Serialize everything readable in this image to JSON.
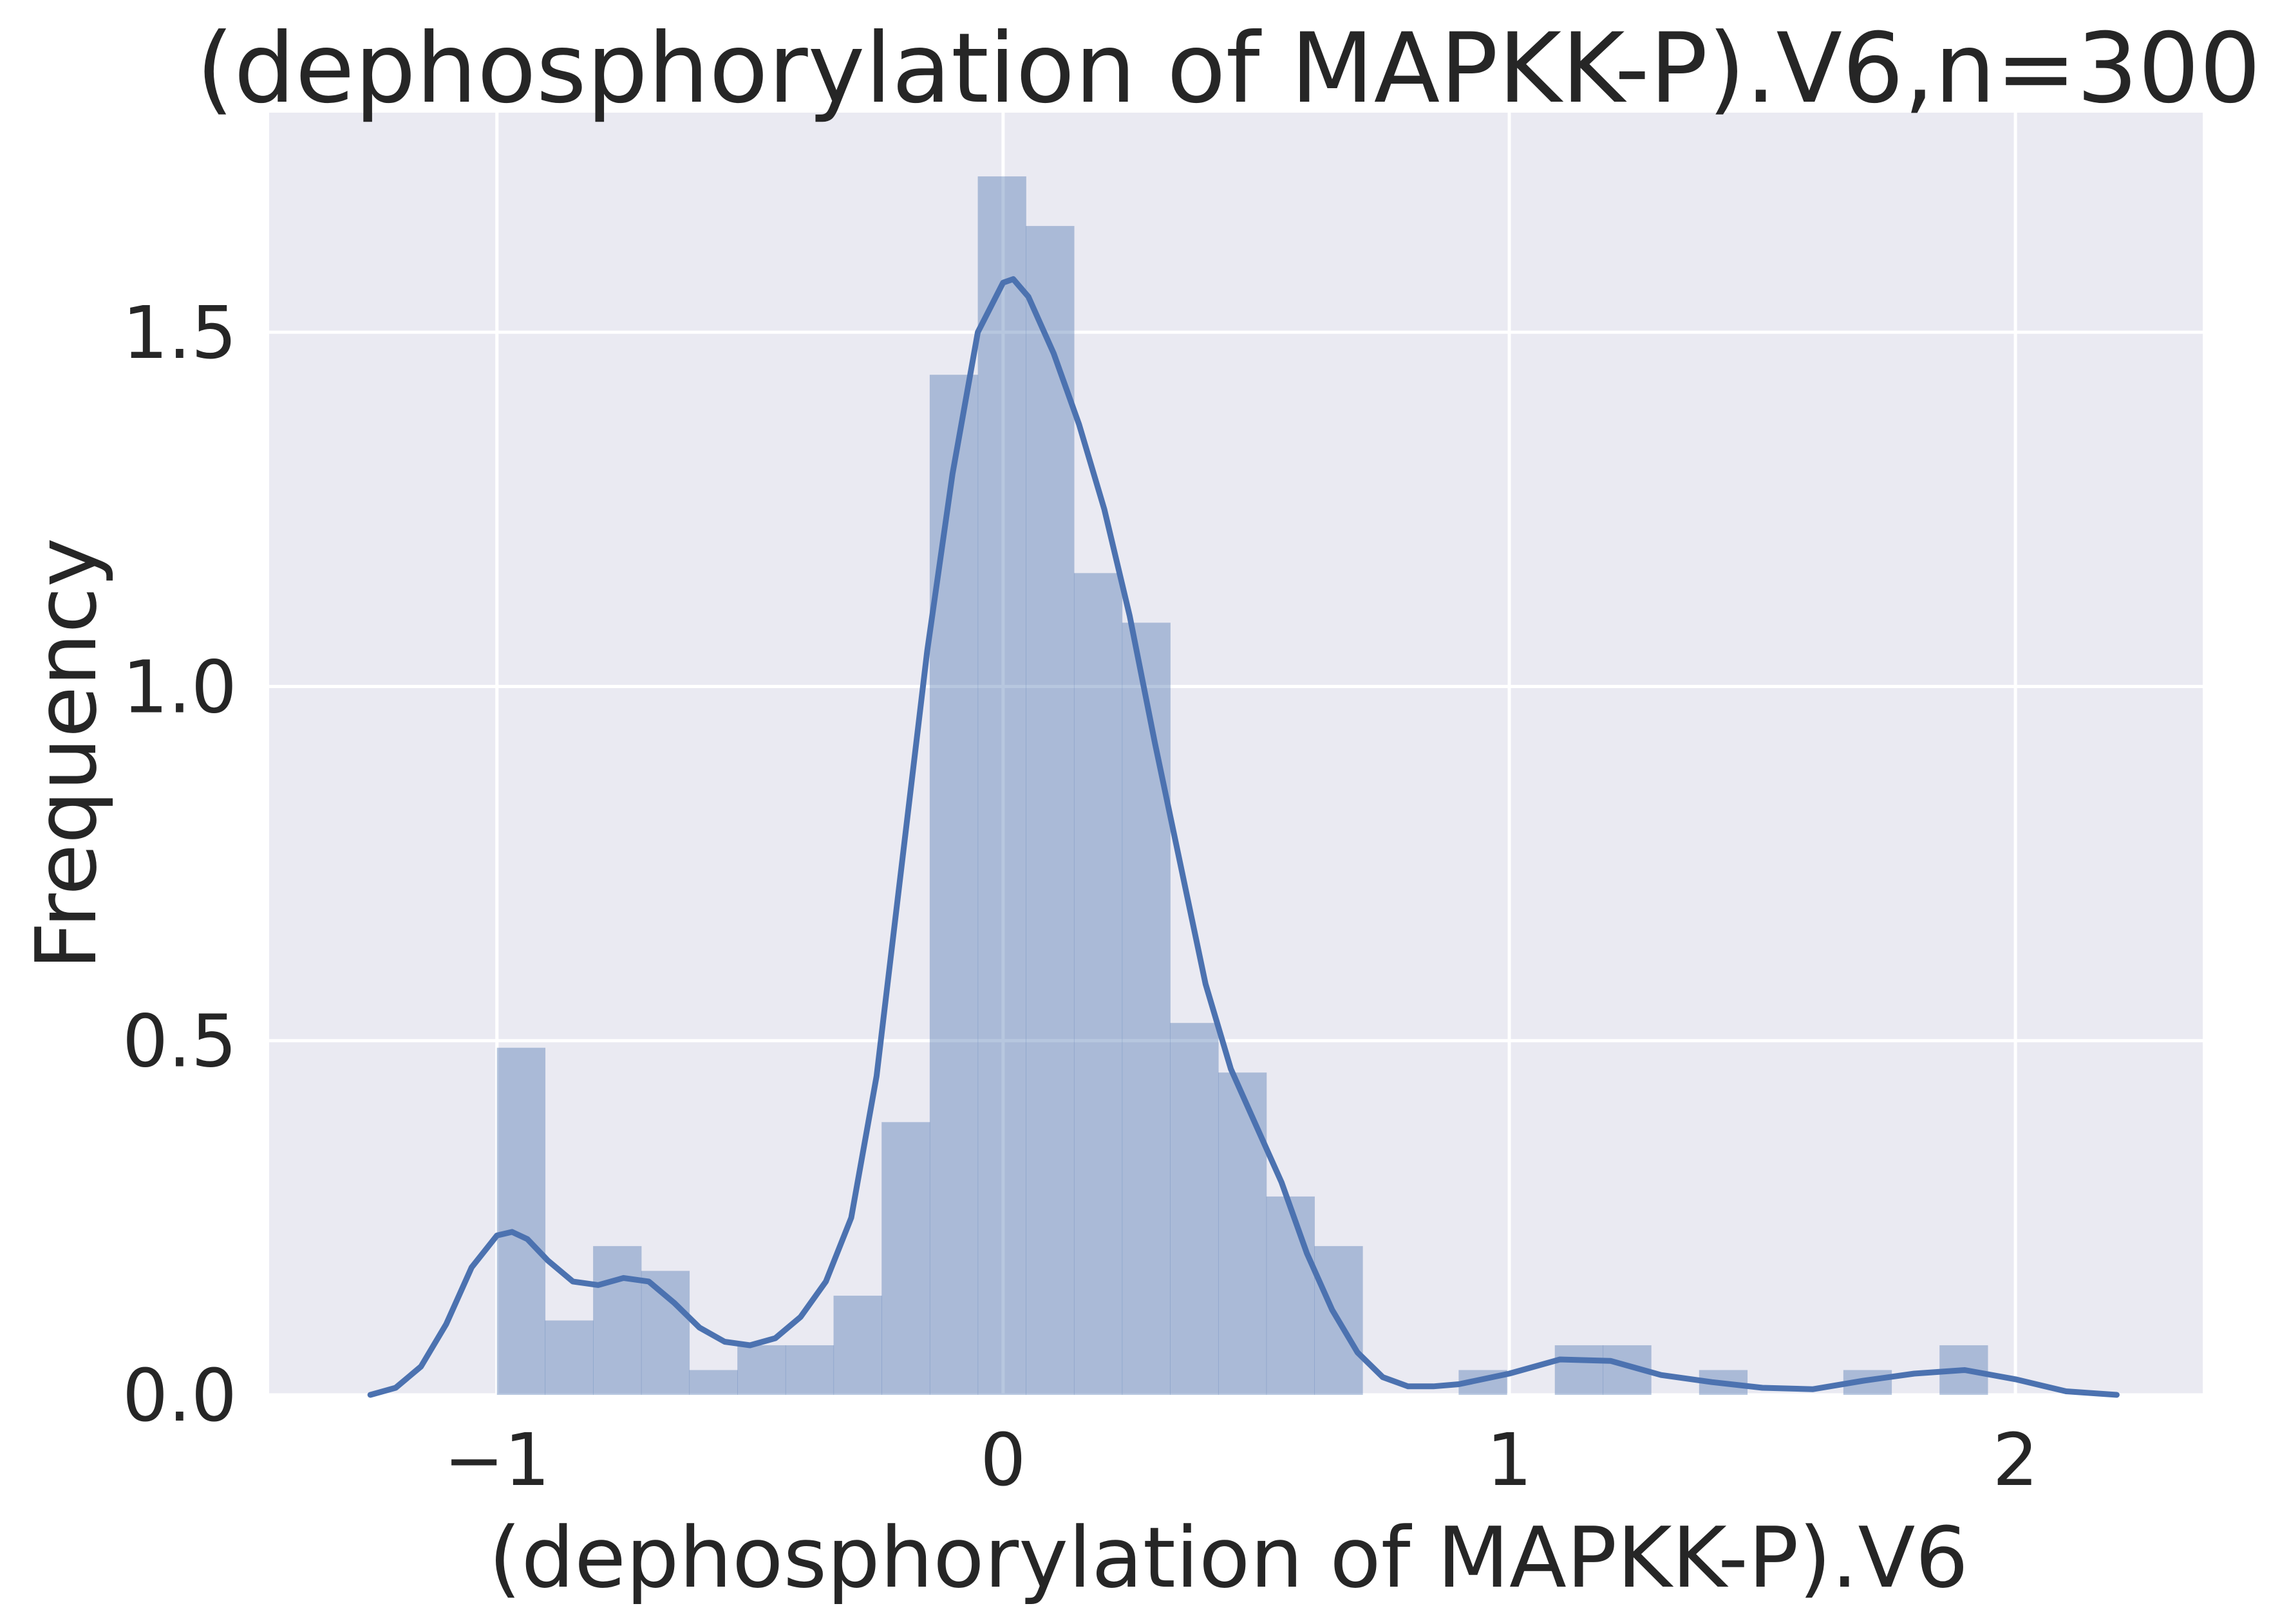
{
  "chart_data": {
    "type": "bar",
    "title": "(dephosphorylation of MAPKK-P).V6,n=300",
    "xlabel": "(dephosphorylation of MAPKK-P).V6",
    "ylabel": "Frequency",
    "xlim": [
      -1.45,
      2.37
    ],
    "ylim": [
      0,
      1.81
    ],
    "xticks": [
      -1,
      0,
      1,
      2
    ],
    "xtick_labels": [
      "−1",
      "0",
      "1",
      "2"
    ],
    "yticks": [
      0.0,
      0.5,
      1.0,
      1.5
    ],
    "ytick_labels": [
      "0.0",
      "0.5",
      "1.0",
      "1.5"
    ],
    "grid": true,
    "background": "#eaeaf2",
    "bar_color": "#4c72b0",
    "line_color": "#4c72b0",
    "histogram": {
      "bin_start": -1.0,
      "bin_width": 0.095,
      "densities": [
        0.49,
        0.105,
        0.21,
        0.175,
        0.035,
        0.07,
        0.07,
        0.14,
        0.385,
        1.44,
        1.72,
        1.65,
        1.16,
        1.09,
        0.525,
        0.455,
        0.28,
        0.21,
        0.0,
        0.0,
        0.035,
        0.0,
        0.07,
        0.07,
        0.0,
        0.035,
        0.0,
        0.0,
        0.035,
        0.0,
        0.07
      ]
    },
    "kde": {
      "name": "density",
      "x": [
        -1.25,
        -1.2,
        -1.15,
        -1.1,
        -1.05,
        -1.0,
        -0.97,
        -0.94,
        -0.9,
        -0.85,
        -0.8,
        -0.75,
        -0.7,
        -0.65,
        -0.6,
        -0.55,
        -0.5,
        -0.45,
        -0.4,
        -0.35,
        -0.3,
        -0.25,
        -0.2,
        -0.15,
        -0.1,
        -0.05,
        0.0,
        0.02,
        0.05,
        0.1,
        0.15,
        0.2,
        0.25,
        0.3,
        0.35,
        0.4,
        0.45,
        0.5,
        0.55,
        0.6,
        0.65,
        0.7,
        0.75,
        0.8,
        0.85,
        0.9,
        1.0,
        1.1,
        1.2,
        1.3,
        1.4,
        1.5,
        1.6,
        1.7,
        1.8,
        1.9,
        2.0,
        2.1,
        2.2
      ],
      "y": [
        0.0,
        0.01,
        0.04,
        0.1,
        0.18,
        0.225,
        0.23,
        0.22,
        0.19,
        0.16,
        0.155,
        0.165,
        0.16,
        0.13,
        0.095,
        0.075,
        0.07,
        0.08,
        0.11,
        0.16,
        0.25,
        0.45,
        0.75,
        1.05,
        1.3,
        1.5,
        1.57,
        1.575,
        1.55,
        1.47,
        1.37,
        1.25,
        1.1,
        0.92,
        0.75,
        0.58,
        0.46,
        0.38,
        0.3,
        0.2,
        0.12,
        0.06,
        0.025,
        0.012,
        0.012,
        0.015,
        0.03,
        0.05,
        0.048,
        0.028,
        0.018,
        0.01,
        0.008,
        0.02,
        0.03,
        0.035,
        0.022,
        0.005,
        0.0
      ]
    }
  }
}
